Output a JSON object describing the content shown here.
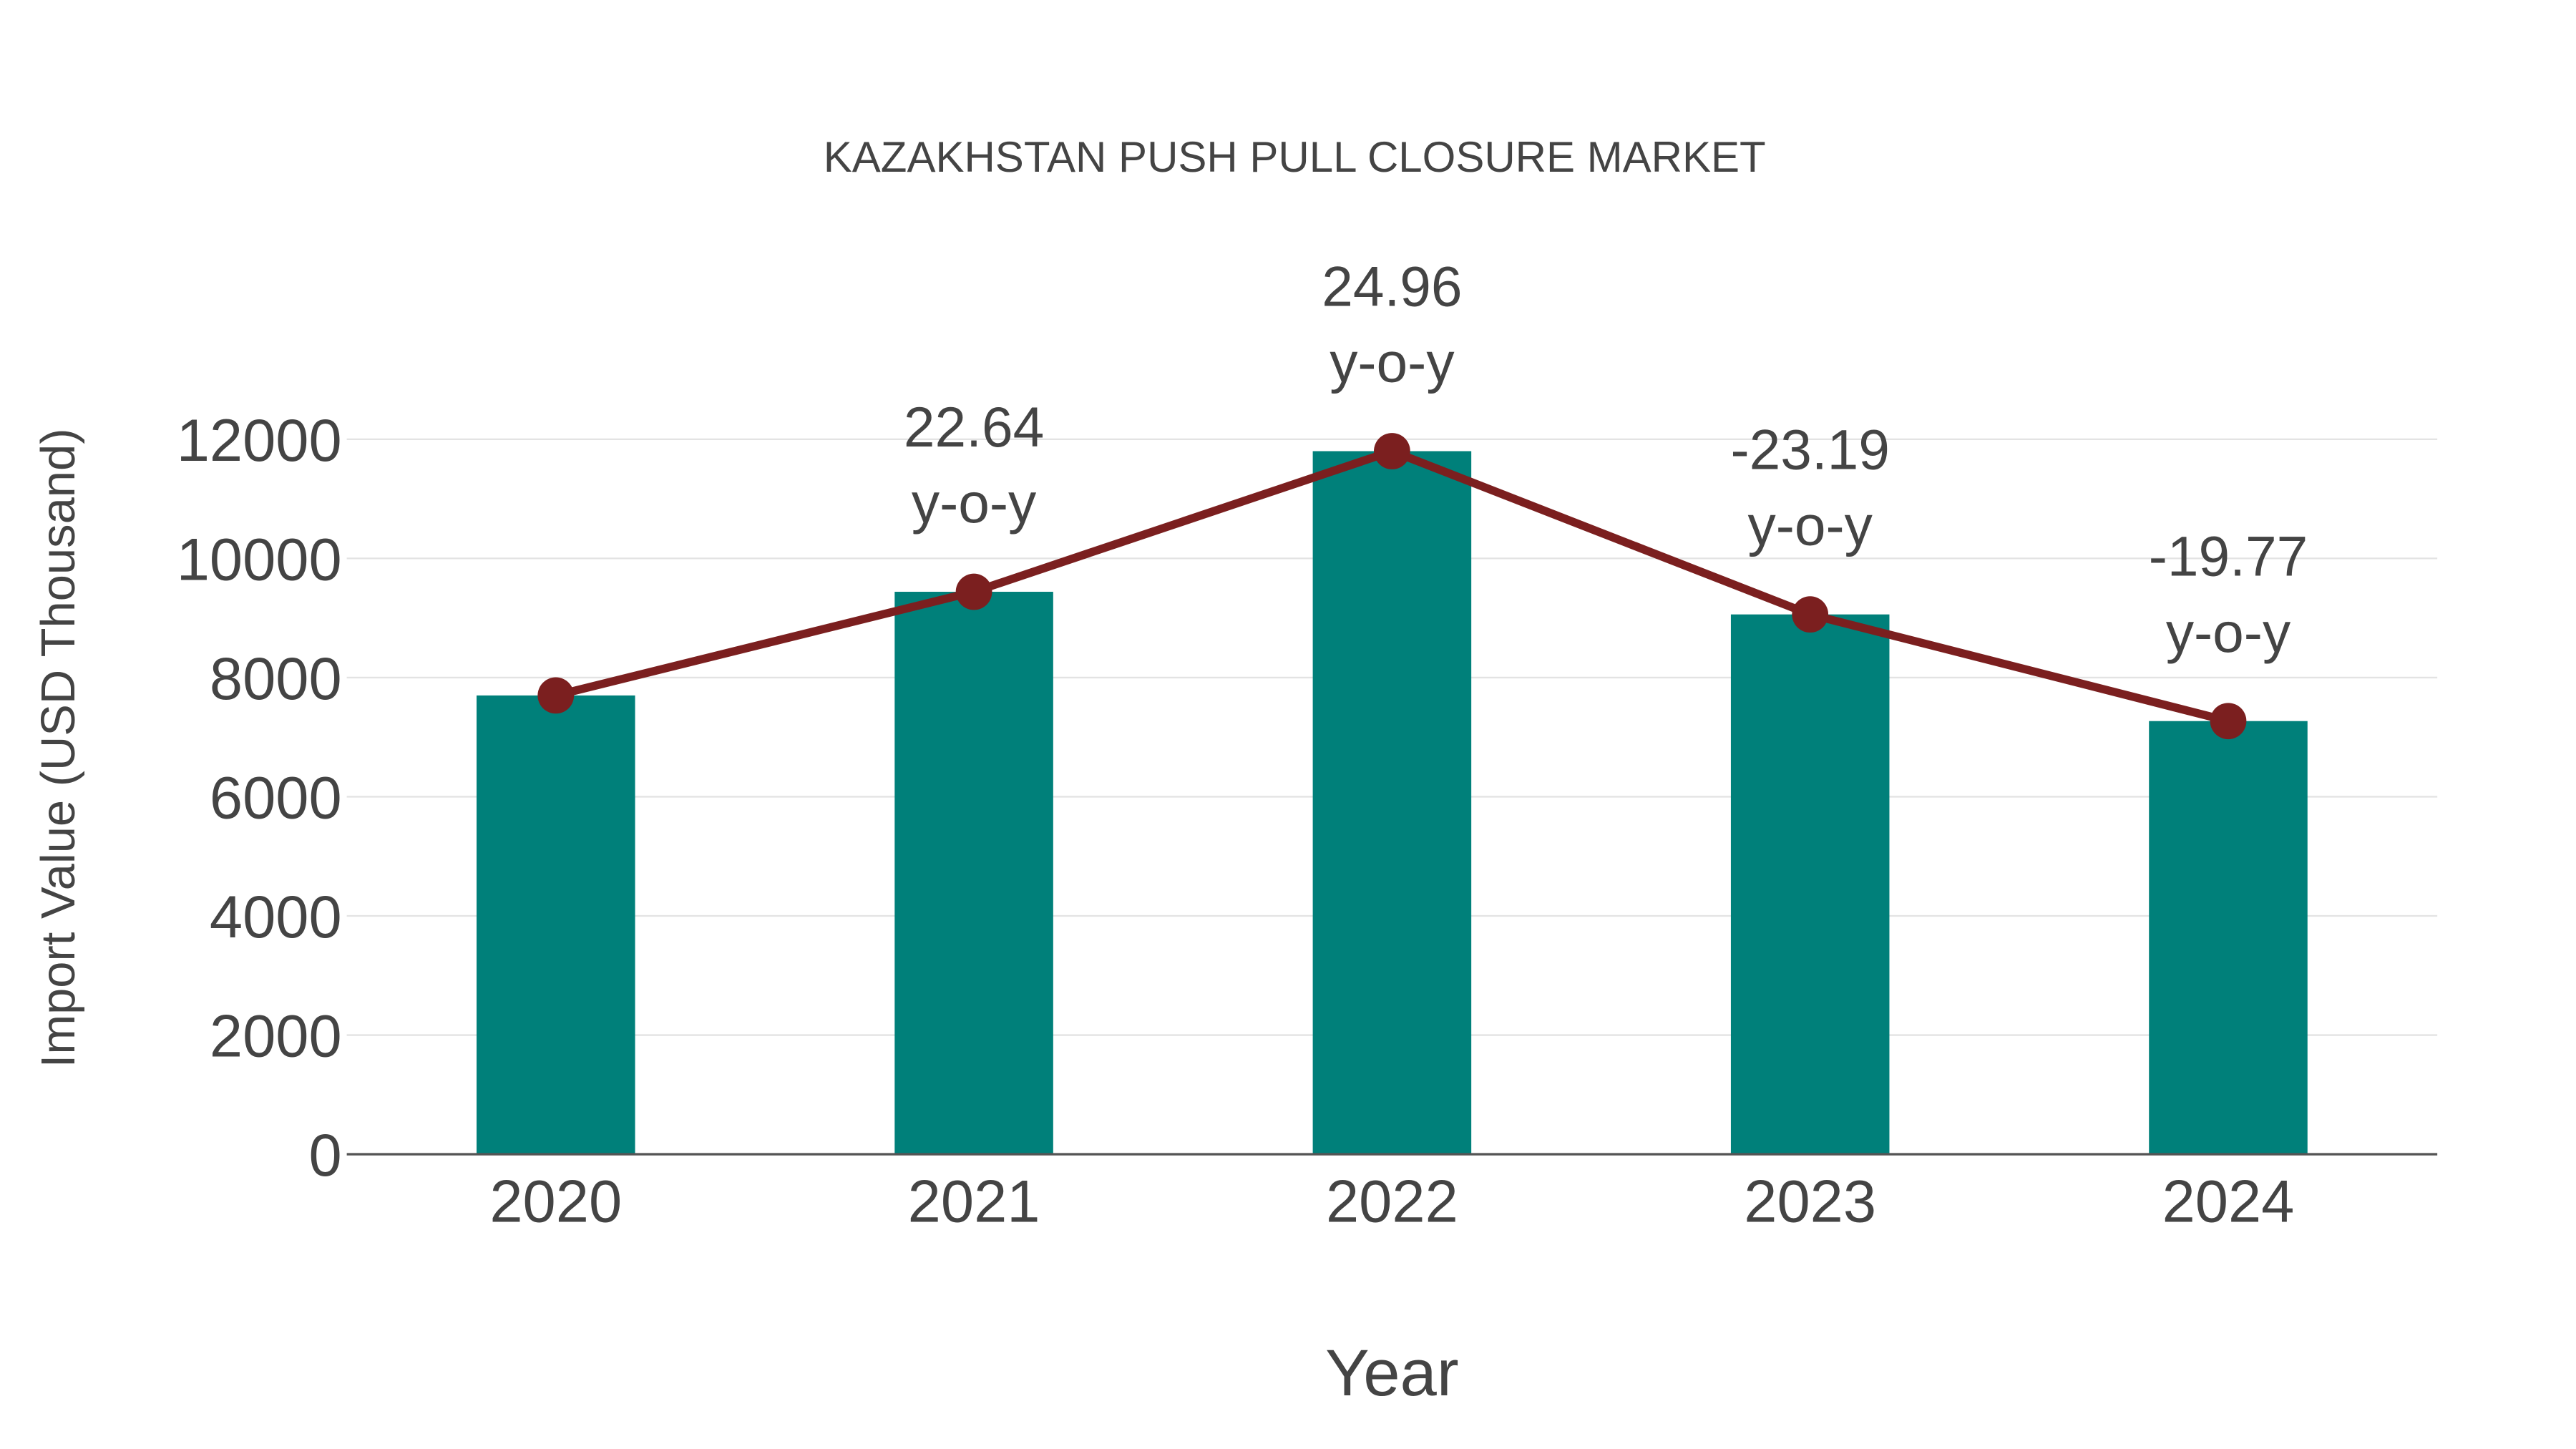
{
  "chart_data": {
    "type": "bar",
    "title": "KAZAKHSTAN PUSH PULL CLOSURE MARKET",
    "xlabel": "Year",
    "ylabel": "Import Value (USD Thousand)",
    "ylim": [
      0,
      12000
    ],
    "yticks": [
      0,
      2000,
      4000,
      6000,
      8000,
      10000,
      12000
    ],
    "categories": [
      "2020",
      "2021",
      "2022",
      "2023",
      "2024"
    ],
    "series": [
      {
        "name": "Import Value",
        "type": "bar",
        "color": "#00807a",
        "values": [
          7700,
          9440,
          11800,
          9060,
          7270
        ]
      },
      {
        "name": "Trend",
        "type": "line",
        "color": "#7b1f1f",
        "values": [
          7700,
          9440,
          11800,
          9060,
          7270
        ]
      }
    ],
    "annotations": [
      {
        "category": "2021",
        "value": "22.64",
        "suffix": "y-o-y"
      },
      {
        "category": "2022",
        "value": "24.96",
        "suffix": "y-o-y"
      },
      {
        "category": "2023",
        "value": "-23.19",
        "suffix": "y-o-y"
      },
      {
        "category": "2024",
        "value": "-19.77",
        "suffix": "y-o-y"
      }
    ],
    "grid": true
  }
}
